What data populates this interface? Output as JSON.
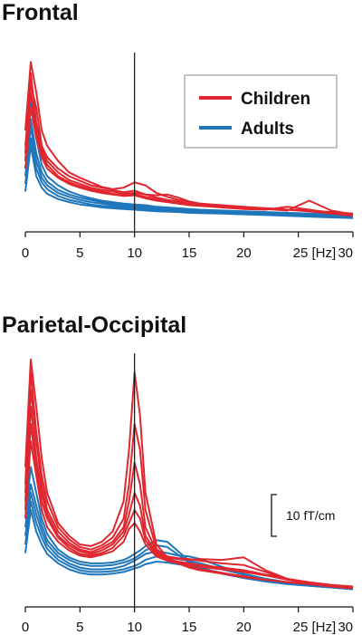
{
  "colors": {
    "children": "#e0262e",
    "adults": "#1f76bb",
    "axis": "#111111"
  },
  "scale_bar": {
    "label": "10 fT/cm",
    "value": 10
  },
  "chart_data": [
    {
      "type": "line",
      "title": "Frontal",
      "xlabel": "",
      "ylabel": "",
      "x_ticks": [
        0,
        5,
        10,
        15,
        20,
        25,
        30
      ],
      "x_tick_labels": [
        "0",
        "5",
        "10",
        "15",
        "20",
        "25 [Hz]",
        "30"
      ],
      "xlim": [
        0,
        30
      ],
      "ylim": [
        0,
        22
      ],
      "reference_line_x": 10,
      "legend": {
        "position": "top-right",
        "entries": [
          "Children",
          "Adults"
        ]
      },
      "x": [
        0,
        0.5,
        1,
        1.5,
        2,
        3,
        4,
        5,
        6,
        7,
        8,
        9,
        10,
        11,
        12,
        13,
        14,
        15,
        16,
        18,
        20,
        22,
        24,
        26,
        28,
        30
      ],
      "series": [
        {
          "group": "Children",
          "values": [
            12,
            21,
            17,
            12,
            10,
            8,
            6.5,
            5.8,
            5.2,
            4.6,
            4.3,
            4.5,
            5.2,
            4.8,
            3.8,
            3.3,
            2.9,
            2.6,
            2.4,
            2.2,
            2.0,
            1.8,
            1.6,
            1.4,
            1.1,
            0.8
          ]
        },
        {
          "group": "Children",
          "values": [
            10,
            18,
            15,
            10,
            8.5,
            7,
            6,
            5.4,
            4.8,
            4.5,
            4.2,
            3.9,
            4.1,
            3.6,
            3.2,
            2.9,
            2.7,
            2.5,
            2.3,
            2.1,
            1.9,
            1.8,
            1.6,
            1.4,
            1.2,
            1.0
          ]
        },
        {
          "group": "Children",
          "values": [
            9,
            19.5,
            13,
            9.5,
            8,
            6.5,
            5.5,
            5.0,
            4.5,
            4.2,
            4.0,
            3.7,
            3.8,
            3.6,
            3.5,
            3.6,
            3.2,
            2.7,
            2.4,
            2.1,
            1.9,
            1.7,
            1.5,
            2.8,
            1.5,
            1.0
          ]
        },
        {
          "group": "Children",
          "values": [
            8,
            17,
            12,
            9,
            7.5,
            6,
            5.2,
            4.7,
            4.3,
            4.0,
            3.7,
            3.5,
            3.6,
            3.3,
            3.0,
            2.8,
            2.6,
            2.4,
            2.2,
            2.0,
            1.8,
            1.7,
            1.6,
            1.5,
            1.3,
            1.1
          ]
        },
        {
          "group": "Children",
          "values": [
            7,
            15,
            11,
            8.5,
            7,
            5.8,
            5.0,
            4.5,
            4.1,
            3.8,
            3.6,
            3.4,
            3.5,
            3.1,
            2.8,
            2.6,
            2.4,
            2.2,
            2.1,
            1.9,
            1.7,
            1.6,
            2.0,
            1.6,
            1.2,
            0.9
          ]
        },
        {
          "group": "Adults",
          "values": [
            8,
            16,
            11,
            7.5,
            6,
            4.8,
            4.0,
            3.5,
            3.1,
            2.8,
            2.6,
            2.4,
            2.3,
            2.2,
            2.0,
            1.9,
            1.8,
            1.7,
            1.6,
            1.5,
            1.4,
            1.3,
            1.2,
            1.1,
            1.0,
            0.9
          ]
        },
        {
          "group": "Adults",
          "values": [
            7,
            13.5,
            9,
            6.5,
            5.3,
            4.2,
            3.6,
            3.2,
            2.9,
            2.6,
            2.4,
            2.2,
            2.1,
            2.0,
            1.9,
            1.8,
            1.7,
            1.6,
            1.5,
            1.4,
            1.3,
            1.2,
            1.1,
            1.0,
            0.9,
            0.8
          ]
        },
        {
          "group": "Adults",
          "values": [
            6,
            12.5,
            8,
            5.8,
            4.8,
            3.8,
            3.3,
            2.9,
            2.6,
            2.4,
            2.2,
            2.1,
            2.0,
            1.9,
            1.8,
            1.7,
            1.6,
            1.5,
            1.4,
            1.3,
            1.2,
            1.1,
            1.0,
            0.9,
            0.8,
            0.7
          ]
        },
        {
          "group": "Adults",
          "values": [
            5,
            11,
            7,
            5.2,
            4.3,
            3.4,
            2.9,
            2.6,
            2.3,
            2.1,
            2.0,
            1.9,
            1.8,
            1.7,
            1.6,
            1.5,
            1.4,
            1.35,
            1.3,
            1.2,
            1.1,
            1.0,
            0.9,
            0.8,
            0.7,
            0.6
          ]
        },
        {
          "group": "Adults",
          "values": [
            4,
            10,
            6,
            4.5,
            3.7,
            3.0,
            2.6,
            2.3,
            2.1,
            1.9,
            1.8,
            1.7,
            1.6,
            1.5,
            1.4,
            1.35,
            1.3,
            1.2,
            1.15,
            1.1,
            1.0,
            0.9,
            0.8,
            0.7,
            0.6,
            0.5
          ]
        }
      ]
    },
    {
      "type": "line",
      "title": "Parietal-Occipital",
      "xlabel": "",
      "ylabel": "",
      "x_ticks": [
        0,
        5,
        10,
        15,
        20,
        25,
        30
      ],
      "x_tick_labels": [
        "0",
        "5",
        "10",
        "15",
        "20",
        "25 [Hz]",
        "30"
      ],
      "xlim": [
        0,
        30
      ],
      "ylim": [
        0,
        28
      ],
      "reference_line_x": 10,
      "x": [
        0,
        0.5,
        1,
        1.5,
        2,
        3,
        4,
        5,
        6,
        7,
        8,
        9,
        9.5,
        10,
        10.5,
        11,
        12,
        13,
        14,
        15,
        16,
        18,
        20,
        22,
        24,
        26,
        28,
        30
      ],
      "series": [
        {
          "group": "Children",
          "values": [
            15,
            27.5,
            22,
            16,
            12,
            8.5,
            7,
            6,
            5.8,
            6.3,
            7.5,
            11,
            17,
            26,
            21,
            12,
            6,
            4.5,
            3.8,
            3.3,
            3.0,
            2.6,
            2.2,
            1.9,
            1.6,
            1.4,
            1.2,
            1.0
          ]
        },
        {
          "group": "Children",
          "values": [
            13,
            26,
            19,
            14,
            11,
            8,
            6.6,
            5.7,
            5.4,
            5.9,
            6.8,
            9,
            13,
            20,
            17,
            10,
            5.5,
            4.4,
            3.8,
            3.4,
            3.1,
            2.7,
            2.3,
            1.9,
            1.6,
            1.4,
            1.2,
            1.0
          ]
        },
        {
          "group": "Children",
          "values": [
            12,
            24,
            18,
            13,
            10,
            7.5,
            6.2,
            5.4,
            5.1,
            5.6,
            6.3,
            8,
            11,
            15.5,
            13,
            8,
            5.2,
            4.6,
            4.4,
            4.3,
            4.1,
            3.8,
            3.6,
            2.8,
            1.9,
            1.5,
            1.2,
            1.0
          ]
        },
        {
          "group": "Children",
          "values": [
            11,
            22,
            16,
            12,
            9.5,
            7,
            5.9,
            5.2,
            4.9,
            5.3,
            6.0,
            7.5,
            9.5,
            12,
            10.5,
            7,
            5.0,
            4.5,
            4.3,
            4.2,
            4.3,
            4.2,
            4.5,
            3.0,
            2.0,
            1.4,
            1.1,
            0.9
          ]
        },
        {
          "group": "Children",
          "values": [
            10,
            20,
            15,
            11,
            9,
            6.8,
            5.6,
            4.9,
            4.7,
            5.0,
            5.6,
            7.0,
            8.5,
            10,
            9,
            6.5,
            4.8,
            4.3,
            4.0,
            3.8,
            3.6,
            3.3,
            3.0,
            2.5,
            2.0,
            1.6,
            1.3,
            1.1
          ]
        },
        {
          "group": "Children",
          "values": [
            9,
            18,
            14,
            10,
            8,
            6.3,
            5.3,
            4.7,
            4.5,
            4.8,
            5.2,
            6.3,
            7.8,
            8.5,
            7.5,
            6.0,
            4.6,
            4.1,
            3.8,
            3.6,
            3.4,
            3.1,
            2.8,
            2.4,
            1.9,
            1.5,
            1.2,
            1.0
          ]
        },
        {
          "group": "Adults",
          "values": [
            9,
            15,
            12,
            9,
            7.2,
            5.4,
            4.5,
            4.0,
            3.8,
            3.8,
            3.9,
            4.2,
            4.5,
            4.9,
            5.3,
            5.8,
            6.5,
            6.3,
            5.2,
            4.1,
            3.3,
            2.6,
            2.1,
            1.7,
            1.4,
            1.2,
            1.0,
            0.8
          ]
        },
        {
          "group": "Adults",
          "values": [
            8,
            13,
            10.5,
            8.2,
            6.5,
            5.0,
            4.2,
            3.7,
            3.5,
            3.5,
            3.6,
            3.9,
            4.1,
            4.4,
            4.8,
            5.3,
            5.9,
            5.7,
            4.8,
            3.9,
            3.3,
            2.6,
            2.1,
            1.7,
            1.4,
            1.2,
            1.0,
            0.8
          ]
        },
        {
          "group": "Adults",
          "values": [
            7,
            12,
            9.5,
            7.5,
            6,
            4.6,
            3.8,
            3.3,
            3.1,
            3.1,
            3.2,
            3.5,
            3.8,
            4.1,
            4.5,
            4.9,
            5.2,
            5.0,
            4.7,
            4.6,
            4.3,
            3.4,
            2.6,
            2.0,
            1.6,
            1.3,
            1.1,
            0.9
          ]
        },
        {
          "group": "Adults",
          "values": [
            6,
            11,
            8.5,
            6.8,
            5.5,
            4.2,
            3.5,
            3.0,
            2.8,
            2.8,
            2.9,
            3.1,
            3.3,
            3.5,
            3.8,
            4.2,
            4.6,
            4.5,
            4.3,
            4.1,
            3.8,
            3.1,
            2.5,
            2.0,
            1.6,
            1.3,
            1.1,
            0.9
          ]
        },
        {
          "group": "Adults",
          "values": [
            5,
            10,
            7.5,
            6,
            4.9,
            3.8,
            3.1,
            2.7,
            2.5,
            2.5,
            2.6,
            2.8,
            3.0,
            3.2,
            3.4,
            3.7,
            4.0,
            3.9,
            3.7,
            3.5,
            3.2,
            2.7,
            2.2,
            1.8,
            1.5,
            1.2,
            1.0,
            0.8
          ]
        }
      ]
    }
  ]
}
